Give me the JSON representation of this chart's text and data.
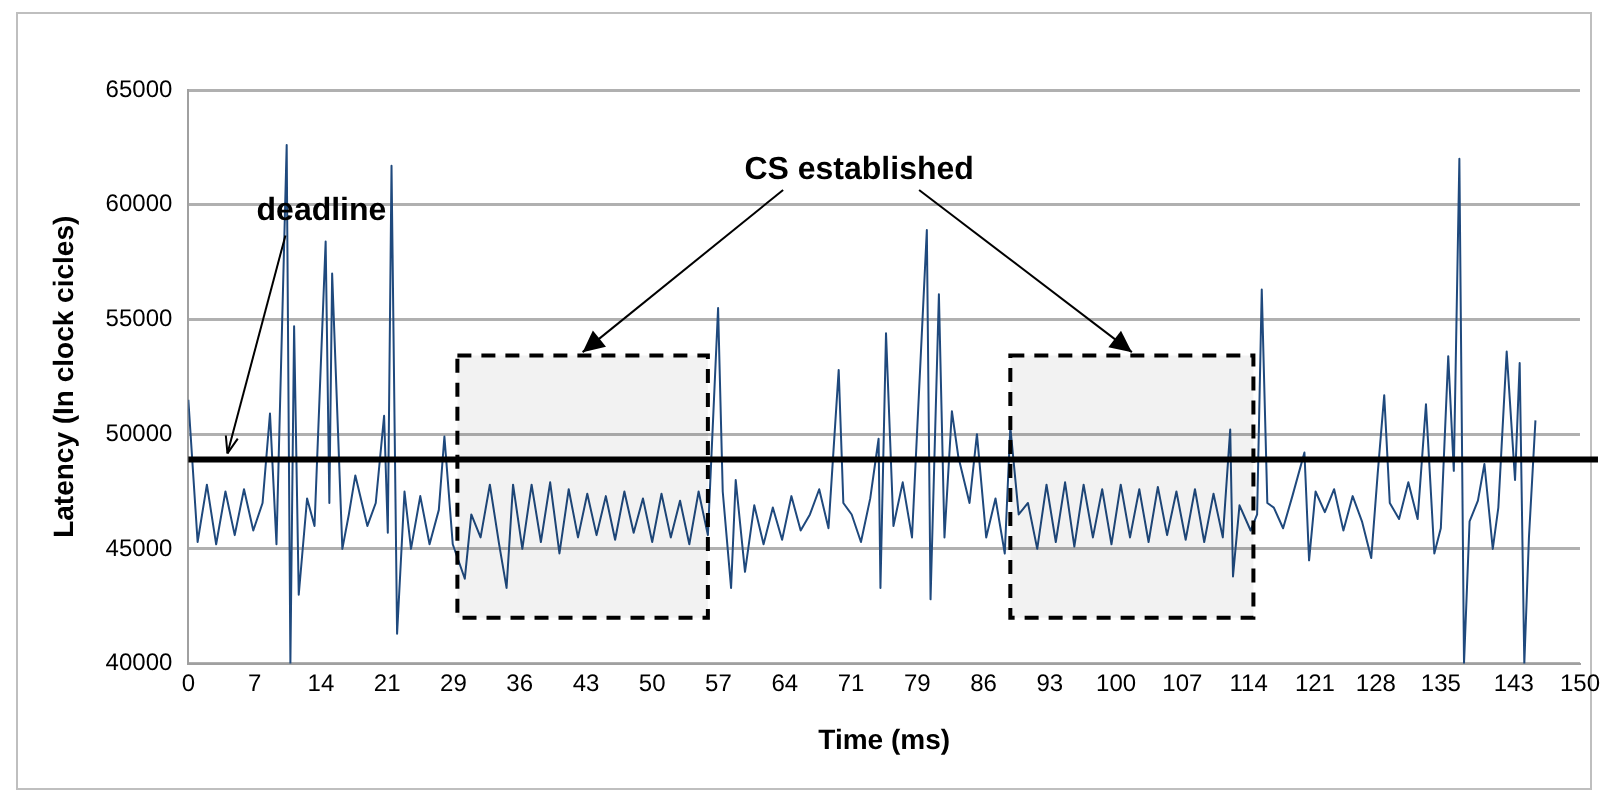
{
  "chart_data": {
    "type": "line",
    "xlabel": "Time (ms)",
    "ylabel": "Latency (In clock cicles)",
    "x": [
      0,
      1,
      2,
      3,
      4,
      5,
      6,
      7,
      8,
      8.8,
      9.5,
      10.6,
      11,
      11.4,
      11.9,
      12.8,
      13.6,
      14.8,
      15.2,
      15.5,
      16.6,
      17.3,
      18,
      19.3,
      20.2,
      21.1,
      21.5,
      21.9,
      22.5,
      23.3,
      24,
      25,
      26,
      27,
      27.6,
      28.5,
      29.8,
      30.5,
      31.5,
      32.5,
      33.5,
      34.3,
      35,
      36,
      37,
      38,
      39,
      40,
      41,
      42,
      43,
      44,
      45,
      46,
      47,
      48,
      49,
      50,
      51,
      52,
      53,
      54,
      55,
      56,
      57.1,
      57.6,
      58.5,
      59,
      60,
      61,
      62,
      63,
      64,
      65,
      66,
      67,
      68,
      69,
      70.1,
      70.6,
      71.5,
      72.5,
      73.5,
      74.4,
      74.6,
      75.2,
      76,
      77,
      78,
      79.6,
      80,
      80.9,
      81.5,
      82.3,
      83,
      84.2,
      85,
      86,
      87,
      88,
      88.6,
      89.5,
      90.5,
      91.5,
      92.5,
      93.5,
      94.5,
      95.5,
      96.5,
      97.5,
      98.5,
      99.5,
      100.5,
      101.5,
      102.5,
      103.5,
      104.5,
      105.5,
      106.5,
      107.5,
      108.5,
      109.5,
      110.5,
      111.5,
      112.3,
      112.6,
      113.3,
      114.5,
      115.2,
      115.7,
      116.3,
      117,
      118,
      119,
      120.3,
      120.8,
      121.5,
      122.5,
      123.5,
      124.5,
      125.5,
      126.5,
      127.5,
      128.2,
      128.9,
      129.5,
      130.5,
      131.5,
      132.5,
      133.4,
      134.3,
      135,
      135.8,
      136.4,
      137,
      137.5,
      138.1,
      139,
      139.7,
      140.6,
      141.2,
      142.1,
      143,
      143.5,
      144,
      144.5,
      145.2
    ],
    "series": [
      {
        "color": "#1f497d",
        "values": [
          51500,
          45300,
          47800,
          45200,
          47500,
          45600,
          47600,
          45800,
          47000,
          50900,
          45200,
          62600,
          40000,
          54700,
          43000,
          47200,
          46000,
          58400,
          47000,
          57000,
          45000,
          46500,
          48200,
          46000,
          47000,
          50800,
          45700,
          61700,
          41300,
          47500,
          45000,
          47300,
          45200,
          46700,
          49900,
          45200,
          43700,
          46500,
          45500,
          47800,
          45200,
          43300,
          47800,
          45000,
          47800,
          45300,
          47900,
          44800,
          47600,
          45500,
          47400,
          45600,
          47300,
          45400,
          47500,
          45700,
          47200,
          45300,
          47400,
          45500,
          47100,
          45200,
          47500,
          45600,
          55500,
          47500,
          43300,
          48000,
          44000,
          46900,
          45200,
          46800,
          45400,
          47300,
          45800,
          46500,
          47600,
          45900,
          52800,
          47000,
          46500,
          45300,
          47200,
          49800,
          43300,
          54400,
          46000,
          47900,
          45500,
          58900,
          42800,
          56100,
          45500,
          51000,
          49000,
          47000,
          50000,
          45500,
          47200,
          44800,
          50300,
          46500,
          47000,
          45000,
          47800,
          45300,
          47900,
          45100,
          47800,
          45500,
          47600,
          45200,
          47800,
          45500,
          47600,
          45300,
          47700,
          45600,
          47500,
          45400,
          47600,
          45300,
          47400,
          45500,
          50200,
          43800,
          46900,
          45800,
          46500,
          56300,
          47000,
          46800,
          45900,
          47300,
          49200,
          44500,
          47500,
          46600,
          47600,
          45800,
          47300,
          46200,
          44600,
          48300,
          51700,
          47000,
          46300,
          47900,
          46300,
          51300,
          44800,
          45900,
          53400,
          48400,
          62000,
          40000,
          46200,
          47100,
          48700,
          45000,
          46800,
          53600,
          48000,
          53100,
          40000,
          45500,
          50600
        ]
      }
    ],
    "xlim": [
      0,
      150
    ],
    "xticks": [
      0,
      {
        "value": 7.14,
        "label": "7"
      },
      {
        "value": 14.29,
        "label": "14"
      },
      {
        "value": 21.43,
        "label": "21"
      },
      {
        "value": 28.57,
        "label": "29"
      },
      {
        "value": 35.71,
        "label": "36"
      },
      {
        "value": 42.86,
        "label": "43"
      },
      50,
      {
        "value": 57.14,
        "label": "57"
      },
      {
        "value": 64.29,
        "label": "64"
      },
      {
        "value": 71.43,
        "label": "71"
      },
      {
        "value": 78.57,
        "label": "79"
      },
      {
        "value": 85.71,
        "label": "86"
      },
      {
        "value": 92.86,
        "label": "93"
      },
      100,
      {
        "value": 107.14,
        "label": "107"
      },
      {
        "value": 114.29,
        "label": "114"
      },
      {
        "value": 121.43,
        "label": "121"
      },
      128,
      135,
      {
        "value": 142.86,
        "label": "143"
      },
      150
    ],
    "ylim": [
      40000,
      65000
    ],
    "yticks": [
      40000,
      45000,
      50000,
      55000,
      60000,
      65000
    ],
    "grid": "y",
    "legend": false,
    "marker": "none",
    "line_style": "solid",
    "ref_lines": [
      {
        "axis": "y",
        "value": 48900,
        "color": "#000000"
      }
    ],
    "bands": [
      {
        "axis": "x",
        "from": 29,
        "to": 56
      },
      {
        "axis": "x",
        "from": 88.6,
        "to": 114.8
      }
    ],
    "annotations": [
      {
        "text": "deadline",
        "x": 4,
        "y": 48900
      },
      {
        "text": "CS established",
        "x": 42.5,
        "y": 53400
      }
    ]
  }
}
